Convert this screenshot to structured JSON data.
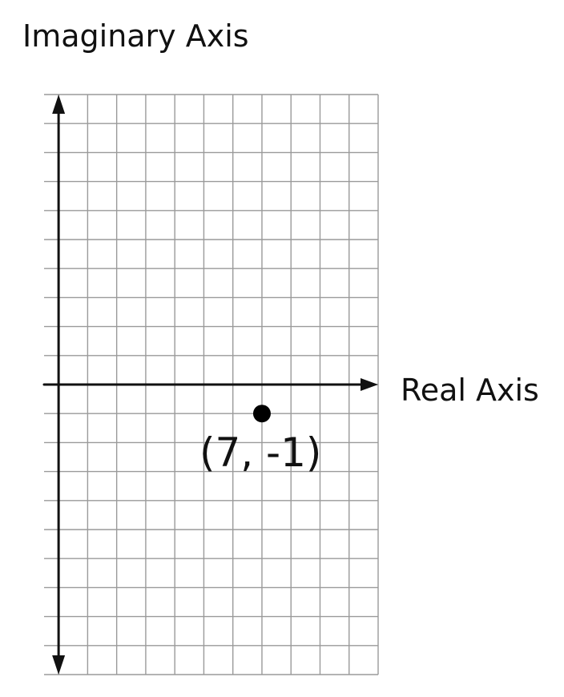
{
  "chart_data": {
    "type": "scatter",
    "title": "",
    "xlabel": "Real Axis",
    "ylabel": "Imaginary Axis",
    "xlim": [
      -0.5,
      11
    ],
    "ylim": [
      -10,
      10
    ],
    "grid": true,
    "points": [
      {
        "x": 7,
        "y": -1,
        "label": "(7, -1)"
      }
    ]
  }
}
